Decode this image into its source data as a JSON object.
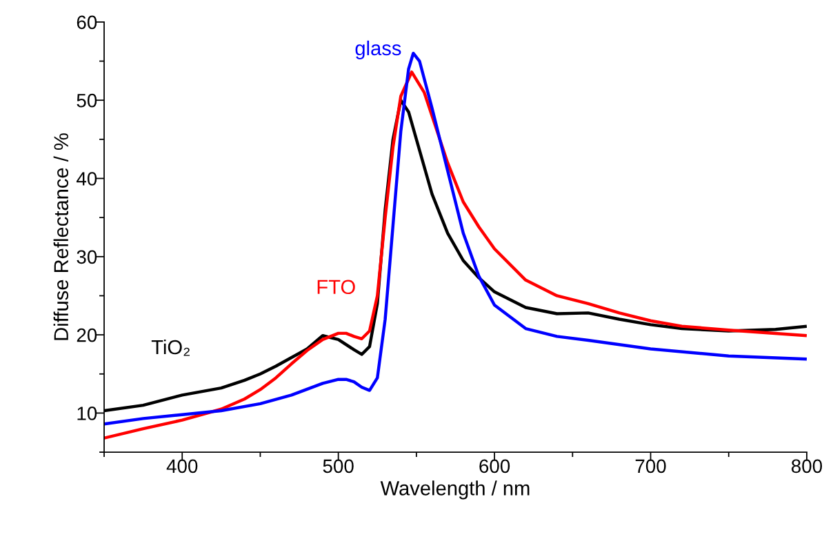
{
  "chart_data": {
    "type": "line",
    "xlabel": "Wavelength / nm",
    "ylabel": "Diffuse Reflectance / %",
    "xlim": [
      350,
      800
    ],
    "ylim": [
      5,
      60
    ],
    "xticks": [
      {
        "value": 350,
        "label": null
      },
      400,
      {
        "value": 450,
        "label": null
      },
      500,
      {
        "value": 550,
        "label": null
      },
      600,
      {
        "value": 650,
        "label": null
      },
      700,
      {
        "value": 750,
        "label": null
      },
      800
    ],
    "yticks": [
      {
        "value": 5,
        "label": null
      },
      10,
      {
        "value": 15,
        "label": null
      },
      20,
      {
        "value": 25,
        "label": null
      },
      30,
      {
        "value": 35,
        "label": null
      },
      40,
      {
        "value": 45,
        "label": null
      },
      50,
      {
        "value": 55,
        "label": null
      },
      60
    ],
    "grid": false,
    "legend": false,
    "marker": "none",
    "line_style": "solid",
    "series": [
      {
        "name": "TiO₂",
        "color": "#000000",
        "x": [
          350,
          375,
          400,
          425,
          440,
          450,
          460,
          470,
          480,
          490,
          500,
          510,
          515,
          520,
          525,
          530,
          535,
          540,
          545,
          550,
          560,
          570,
          580,
          590,
          600,
          620,
          640,
          660,
          680,
          700,
          720,
          750,
          780,
          800
        ],
        "values": [
          10.3,
          11.0,
          12.3,
          13.2,
          14.2,
          15.0,
          16.0,
          17.1,
          18.2,
          19.9,
          19.4,
          18.1,
          17.5,
          18.5,
          24,
          36,
          45,
          50,
          48.5,
          45,
          38,
          33,
          29.5,
          27.3,
          25.5,
          23.5,
          22.7,
          22.8,
          22.0,
          21.3,
          20.8,
          20.5,
          20.7,
          21.1
        ]
      },
      {
        "name": "FTO",
        "color": "#ff0000",
        "x": [
          350,
          375,
          400,
          425,
          440,
          450,
          460,
          470,
          480,
          490,
          500,
          505,
          510,
          515,
          520,
          525,
          530,
          535,
          540,
          547,
          555,
          560,
          570,
          580,
          590,
          600,
          620,
          640,
          660,
          680,
          700,
          720,
          750,
          800
        ],
        "values": [
          6.8,
          8.0,
          9.1,
          10.5,
          11.8,
          13,
          14.5,
          16.3,
          18.0,
          19.4,
          20.2,
          20.2,
          19.8,
          19.5,
          20.5,
          25,
          35,
          44,
          50.5,
          53.6,
          51,
          48,
          42,
          37,
          33.8,
          31,
          27,
          25,
          24,
          22.8,
          21.8,
          21.1,
          20.6,
          19.9
        ]
      },
      {
        "name": "glass",
        "color": "#0000ff",
        "x": [
          350,
          375,
          400,
          425,
          450,
          470,
          490,
          500,
          505,
          510,
          515,
          520,
          525,
          530,
          535,
          540,
          545,
          548,
          552,
          560,
          570,
          580,
          590,
          600,
          620,
          640,
          660,
          700,
          750,
          800
        ],
        "values": [
          8.6,
          9.3,
          9.8,
          10.3,
          11.2,
          12.3,
          13.8,
          14.3,
          14.3,
          14.0,
          13.3,
          12.9,
          14.5,
          22,
          34,
          46,
          54,
          56,
          55,
          49,
          41,
          33,
          27.5,
          23.8,
          20.8,
          19.8,
          19.3,
          18.2,
          17.3,
          16.9
        ]
      }
    ]
  }
}
